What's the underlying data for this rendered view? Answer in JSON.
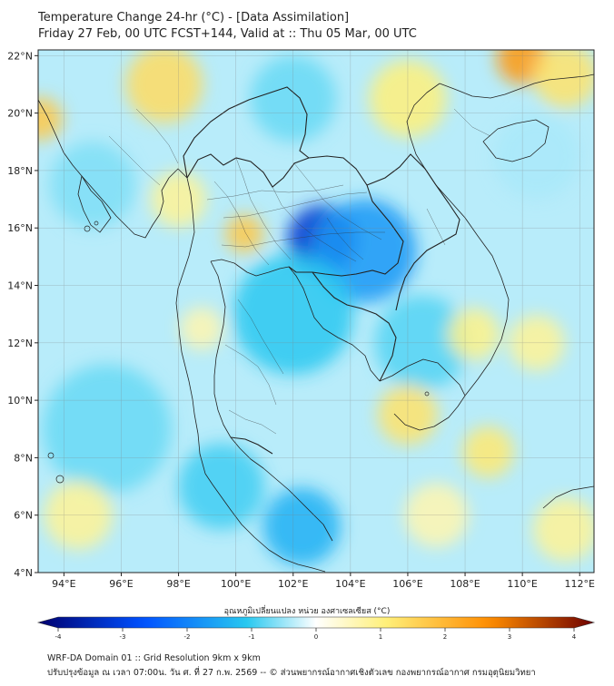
{
  "header": {
    "title_line1": "Temperature Change 24-hr (°C) - [Data Assimilation]",
    "title_line2": "Friday 27 Feb, 00 UTC FCST+144, Valid at :: Thu 05 Mar, 00 UTC"
  },
  "map": {
    "lat_labels": [
      "22°N",
      "20°N",
      "18°N",
      "16°N",
      "14°N",
      "12°N",
      "10°N",
      "8°N",
      "6°N",
      "4°N"
    ],
    "lat_values": [
      22,
      20,
      18,
      16,
      14,
      12,
      10,
      8,
      6,
      4
    ],
    "lon_labels": [
      "94°E",
      "96°E",
      "98°E",
      "100°E",
      "102°E",
      "104°E",
      "106°E",
      "108°E",
      "110°E",
      "112°E"
    ],
    "lon_values": [
      94,
      96,
      98,
      100,
      102,
      104,
      106,
      108,
      110,
      112
    ],
    "lat_range": [
      4,
      22.2
    ],
    "lon_range": [
      93.1,
      112.5
    ],
    "anomalies": [
      {
        "lon": 103.0,
        "lat": 15.6,
        "value": -3.0,
        "spread": 1.6
      },
      {
        "lon": 104.5,
        "lat": 15.2,
        "value": -1.6,
        "spread": 2.4
      },
      {
        "lon": 102.0,
        "lat": 13.0,
        "value": -1.0,
        "spread": 2.8
      },
      {
        "lon": 102.3,
        "lat": 5.6,
        "value": -1.3,
        "spread": 1.8
      },
      {
        "lon": 99.5,
        "lat": 7.0,
        "value": -0.9,
        "spread": 2.0
      },
      {
        "lon": 95.5,
        "lat": 9.0,
        "value": -0.7,
        "spread": 3.0
      },
      {
        "lon": 95.0,
        "lat": 17.5,
        "value": -0.6,
        "spread": 2.0
      },
      {
        "lon": 102.0,
        "lat": 20.5,
        "value": -0.7,
        "spread": 2.0
      },
      {
        "lon": 106.5,
        "lat": 12.0,
        "value": -0.8,
        "spread": 2.2
      },
      {
        "lon": 110.5,
        "lat": 18.5,
        "value": -0.4,
        "spread": 2.0
      },
      {
        "lon": 110.0,
        "lat": 21.9,
        "value": 2.3,
        "spread": 1.2
      },
      {
        "lon": 111.5,
        "lat": 21.3,
        "value": 1.2,
        "spread": 1.5
      },
      {
        "lon": 106.0,
        "lat": 20.5,
        "value": 1.0,
        "spread": 1.8
      },
      {
        "lon": 97.5,
        "lat": 21.0,
        "value": 1.3,
        "spread": 1.8
      },
      {
        "lon": 100.3,
        "lat": 15.8,
        "value": 1.6,
        "spread": 0.9
      },
      {
        "lon": 93.2,
        "lat": 19.8,
        "value": 1.6,
        "spread": 1.0
      },
      {
        "lon": 98.0,
        "lat": 17.0,
        "value": 0.8,
        "spread": 1.3
      },
      {
        "lon": 106.0,
        "lat": 9.5,
        "value": 1.2,
        "spread": 1.4
      },
      {
        "lon": 108.8,
        "lat": 8.2,
        "value": 1.1,
        "spread": 1.2
      },
      {
        "lon": 108.3,
        "lat": 12.3,
        "value": 0.9,
        "spread": 1.2
      },
      {
        "lon": 110.5,
        "lat": 12.0,
        "value": 0.8,
        "spread": 1.3
      },
      {
        "lon": 94.5,
        "lat": 6.0,
        "value": 0.8,
        "spread": 1.6
      },
      {
        "lon": 111.5,
        "lat": 5.5,
        "value": 0.8,
        "spread": 1.5
      },
      {
        "lon": 98.8,
        "lat": 12.5,
        "value": 0.6,
        "spread": 1.0
      },
      {
        "lon": 107.0,
        "lat": 6.0,
        "value": 0.6,
        "spread": 1.5
      }
    ]
  },
  "colorbar": {
    "title": "อุณหภูมิเปลี่ยนแปลง หน่วย องศาเซลเซียส (°C)",
    "tick_labels": [
      "-4",
      "-3",
      "-2",
      "-1",
      "0",
      "1",
      "2",
      "3",
      "4"
    ],
    "tick_values": [
      -4,
      -3,
      -2,
      -1,
      0,
      1,
      2,
      3,
      4
    ],
    "range": [
      -4,
      4
    ],
    "colors": {
      "neg_strong": "#00006e",
      "neg_mid": "#0050ff",
      "neg_light": "#28c8f0",
      "neutral": "#ffffff",
      "pos_light": "#fff07a",
      "pos_mid": "#ff8c00",
      "pos_strong": "#6e0000"
    }
  },
  "footer": {
    "line1": "WRF-DA Domain 01 :: Grid Resolution 9km x 9km",
    "line2": "ปรับปรุงข้อมูล ณ เวลา 07:00น. วัน ศ. ที่ 27 ก.พ. 2569 -- © ส่วนพยากรณ์อากาศเชิงตัวเลข กองพยากรณ์อากาศ กรมอุตุนิยมวิทยา"
  }
}
